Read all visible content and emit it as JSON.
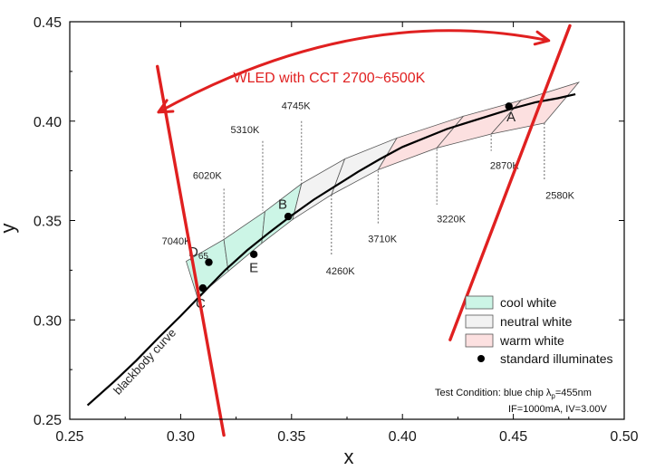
{
  "chart_data": {
    "type": "scatter",
    "xlabel": "x",
    "ylabel": "y",
    "xlim": [
      0.25,
      0.5
    ],
    "ylim": [
      0.25,
      0.45
    ],
    "xticks": [
      "0.25",
      "0.30",
      "0.35",
      "0.40",
      "0.45",
      "0.50"
    ],
    "yticks": [
      "0.25",
      "0.30",
      "0.35",
      "0.40",
      "0.45"
    ],
    "grid": false,
    "colors": {
      "cool": "#ccf5e6",
      "neutral": "#f2f2f2",
      "warm": "#fce0e0",
      "bound": "#e02020"
    },
    "blackbody": {
      "label": "blackbody curve",
      "points": [
        [
          0.258,
          0.257
        ],
        [
          0.27,
          0.269
        ],
        [
          0.28,
          0.2795
        ],
        [
          0.29,
          0.291
        ],
        [
          0.3,
          0.302
        ],
        [
          0.31,
          0.3135
        ],
        [
          0.32,
          0.325
        ],
        [
          0.33,
          0.335
        ],
        [
          0.34,
          0.344
        ],
        [
          0.35,
          0.3525
        ],
        [
          0.36,
          0.3605
        ],
        [
          0.37,
          0.3675
        ],
        [
          0.38,
          0.3745
        ],
        [
          0.39,
          0.381
        ],
        [
          0.4,
          0.387
        ],
        [
          0.41,
          0.3915
        ],
        [
          0.42,
          0.396
        ],
        [
          0.43,
          0.3995
        ],
        [
          0.44,
          0.403
        ],
        [
          0.45,
          0.4065
        ],
        [
          0.46,
          0.4095
        ],
        [
          0.47,
          0.4115
        ],
        [
          0.478,
          0.4135
        ]
      ]
    },
    "bins": [
      {
        "group": "cool",
        "corners": [
          [
            0.3025,
            0.3295
          ],
          [
            0.3075,
            0.3115
          ],
          [
            0.3215,
            0.3245
          ],
          [
            0.3195,
            0.3405
          ]
        ]
      },
      {
        "group": "cool",
        "corners": [
          [
            0.3195,
            0.3405
          ],
          [
            0.3215,
            0.3245
          ],
          [
            0.3365,
            0.3385
          ],
          [
            0.338,
            0.3545
          ]
        ]
      },
      {
        "group": "cool",
        "corners": [
          [
            0.338,
            0.3545
          ],
          [
            0.3365,
            0.3385
          ],
          [
            0.3505,
            0.3505
          ],
          [
            0.3545,
            0.3685
          ]
        ]
      },
      {
        "group": "neutral",
        "corners": [
          [
            0.3545,
            0.3685
          ],
          [
            0.3505,
            0.3505
          ],
          [
            0.368,
            0.363
          ],
          [
            0.374,
            0.381
          ]
        ]
      },
      {
        "group": "neutral",
        "corners": [
          [
            0.374,
            0.381
          ],
          [
            0.368,
            0.363
          ],
          [
            0.389,
            0.3755
          ],
          [
            0.3975,
            0.3915
          ]
        ]
      },
      {
        "group": "warm",
        "corners": [
          [
            0.3975,
            0.3915
          ],
          [
            0.389,
            0.3755
          ],
          [
            0.4155,
            0.3865
          ],
          [
            0.4275,
            0.4025
          ]
        ]
      },
      {
        "group": "warm",
        "corners": [
          [
            0.4275,
            0.4025
          ],
          [
            0.4155,
            0.3865
          ],
          [
            0.44,
            0.3935
          ],
          [
            0.4535,
            0.4105
          ]
        ]
      },
      {
        "group": "warm",
        "corners": [
          [
            0.4535,
            0.4105
          ],
          [
            0.44,
            0.3935
          ],
          [
            0.464,
            0.399
          ],
          [
            0.4795,
            0.4195
          ]
        ]
      }
    ],
    "cct_labels": [
      {
        "text": "7040K",
        "x": 0.298,
        "y": 0.338,
        "lead": [
          0.3045,
          0.336,
          0.3045,
          0.33
        ]
      },
      {
        "text": "6020K",
        "x": 0.312,
        "y": 0.371,
        "lead": [
          0.3195,
          0.366,
          0.3195,
          0.341
        ]
      },
      {
        "text": "5310K",
        "x": 0.329,
        "y": 0.394,
        "lead": [
          0.337,
          0.39,
          0.337,
          0.355
        ]
      },
      {
        "text": "4745K",
        "x": 0.352,
        "y": 0.406,
        "lead": [
          0.3545,
          0.4,
          0.3545,
          0.368
        ]
      },
      {
        "text": "4260K",
        "x": 0.372,
        "y": 0.323,
        "lead": [
          0.368,
          0.363,
          0.368,
          0.332
        ]
      },
      {
        "text": "3710K",
        "x": 0.391,
        "y": 0.339,
        "lead": [
          0.389,
          0.375,
          0.389,
          0.348
        ]
      },
      {
        "text": "3220K",
        "x": 0.422,
        "y": 0.349,
        "lead": [
          0.4155,
          0.386,
          0.4155,
          0.358
        ]
      },
      {
        "text": "2870K",
        "x": 0.446,
        "y": 0.376,
        "lead": [
          0.44,
          0.393,
          0.44,
          0.385
        ]
      },
      {
        "text": "2580K",
        "x": 0.471,
        "y": 0.361,
        "lead": [
          0.464,
          0.399,
          0.464,
          0.37
        ]
      }
    ],
    "points": [
      {
        "label": "A",
        "x": 0.448,
        "y": 0.4075,
        "lx": 0.449,
        "ly": 0.4
      },
      {
        "label": "B",
        "x": 0.3485,
        "y": 0.352,
        "lx": 0.346,
        "ly": 0.356
      },
      {
        "label": "C",
        "x": 0.31,
        "y": 0.316,
        "lx": 0.309,
        "ly": 0.306
      },
      {
        "label": "D",
        "sub": "65",
        "x": 0.3127,
        "y": 0.329,
        "lx": 0.308,
        "ly": 0.332
      },
      {
        "label": "E",
        "x": 0.333,
        "y": 0.333,
        "lx": 0.333,
        "ly": 0.324
      }
    ],
    "boundary_lines": [
      {
        "from": [
          0.2895,
          0.4275
        ],
        "to": [
          0.3195,
          0.242
        ]
      },
      {
        "from": [
          0.4215,
          0.29
        ],
        "to": [
          0.4755,
          0.448
        ]
      }
    ],
    "annotation": {
      "text": "WLED with CCT 2700~6500K",
      "x": 0.367,
      "y": 0.4195,
      "arc_from": [
        0.29,
        0.4045
      ],
      "arc_to": [
        0.466,
        0.4405
      ],
      "arc_ctrl": [
        0.38,
        0.46
      ]
    },
    "legend": {
      "entries": [
        {
          "label": "cool white",
          "swatch": "cool"
        },
        {
          "label": "neutral white",
          "swatch": "neutral"
        },
        {
          "label": "warm white",
          "swatch": "warm"
        },
        {
          "label": "standard illuminates",
          "swatch": "dot"
        }
      ]
    },
    "test_condition": {
      "line1_prefix": "Test Condition: blue chip ",
      "line1_lambda": "λ",
      "line1_sub": "p",
      "line1_suffix": "=455nm",
      "line2": "IF=1000mA,  IV=3.00V"
    }
  }
}
